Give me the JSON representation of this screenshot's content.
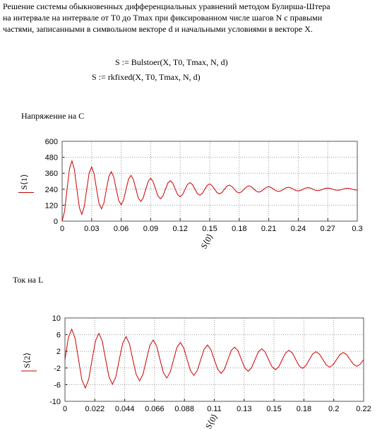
{
  "header": {
    "lines": [
      "Решение системы обыкновенных дифференциальных уравнений  методом Булирша-Штера",
      "на интервале на интервале от T0 до Tmax при фиксированном числе шагов N с правыми",
      "частями, записанными в символьном векторе  d и начальными условиями в векторе X."
    ],
    "formulas": [
      "S := Bulstoer(X, T0, Tmax, N, d)",
      "S := rkfixed(X, T0, Tmax, N, d)"
    ]
  },
  "chart_data": [
    {
      "type": "line",
      "title": "Напряжение на C",
      "y_label": "S⟨1⟩",
      "x_label": "S⟨0⟩",
      "color": "#cc0000",
      "grid": true,
      "xlim": [
        0,
        0.3
      ],
      "ylim": [
        0,
        600
      ],
      "xticks": [
        0,
        0.03,
        0.06,
        0.09,
        0.12,
        0.15,
        0.18,
        0.21,
        0.24,
        0.27,
        0.3
      ],
      "yticks": [
        0,
        120,
        240,
        360,
        480,
        600
      ],
      "x": [
        0,
        0.0025,
        0.005,
        0.0075,
        0.01,
        0.0125,
        0.015,
        0.0175,
        0.02,
        0.0225,
        0.025,
        0.0275,
        0.03,
        0.0325,
        0.035,
        0.0375,
        0.04,
        0.0425,
        0.045,
        0.0475,
        0.05,
        0.0525,
        0.055,
        0.0575,
        0.06,
        0.0625,
        0.065,
        0.0675,
        0.07,
        0.0725,
        0.075,
        0.0775,
        0.08,
        0.0825,
        0.085,
        0.0875,
        0.09,
        0.0925,
        0.095,
        0.0975,
        0.1,
        0.1025,
        0.105,
        0.1075,
        0.11,
        0.1125,
        0.115,
        0.1175,
        0.12,
        0.1225,
        0.125,
        0.1275,
        0.13,
        0.1325,
        0.135,
        0.1375,
        0.14,
        0.1425,
        0.145,
        0.1475,
        0.15,
        0.1525,
        0.155,
        0.1575,
        0.16,
        0.1625,
        0.165,
        0.1675,
        0.17,
        0.1725,
        0.175,
        0.1775,
        0.18,
        0.1825,
        0.185,
        0.1875,
        0.19,
        0.1925,
        0.195,
        0.1975,
        0.2,
        0.2025,
        0.205,
        0.2075,
        0.21,
        0.2125,
        0.215,
        0.2175,
        0.22,
        0.2225,
        0.225,
        0.2275,
        0.23,
        0.2325,
        0.235,
        0.2375,
        0.24,
        0.2425,
        0.245,
        0.2475,
        0.25,
        0.2525,
        0.255,
        0.2575,
        0.26,
        0.2625,
        0.265,
        0.2675,
        0.27,
        0.2725,
        0.275,
        0.2775,
        0.28,
        0.2825,
        0.285,
        0.2875,
        0.29,
        0.2925,
        0.295,
        0.2975,
        0.3
      ],
      "values": [
        0,
        75,
        240,
        395,
        453,
        386,
        240,
        102,
        51,
        110,
        240,
        362,
        408,
        355,
        240,
        132,
        92,
        138,
        240,
        336,
        372,
        330,
        240,
        155,
        123,
        160,
        240,
        316,
        344,
        311,
        240,
        173,
        148,
        177,
        240,
        299,
        322,
        296,
        240,
        187,
        168,
        190,
        240,
        287,
        304,
        284,
        240,
        199,
        183,
        201,
        240,
        277,
        290,
        275,
        240,
        207,
        195,
        209,
        240,
        269,
        280,
        267,
        240,
        214,
        205,
        216,
        240,
        263,
        271,
        261,
        240,
        220,
        212,
        221,
        240,
        258,
        265,
        257,
        240,
        224,
        218,
        225,
        240,
        254,
        259,
        253,
        240,
        228,
        223,
        228,
        240,
        251,
        255,
        250,
        240,
        230,
        227,
        231,
        240,
        249,
        252,
        248,
        240,
        232,
        229,
        233,
        240,
        247,
        249,
        246,
        240,
        234,
        232,
        234,
        240,
        245,
        247,
        245,
        240,
        235,
        233
      ]
    },
    {
      "type": "line",
      "title": "Ток на L",
      "y_label": "S⟨2⟩",
      "x_label": "S⟨0⟩",
      "color": "#cc0000",
      "grid": true,
      "xlim": [
        0,
        0.22
      ],
      "ylim": [
        -10,
        10
      ],
      "xticks": [
        0,
        0.022,
        0.044,
        0.066,
        0.088,
        0.11,
        {
          "value": 0.132,
          "label": "0.13"
        },
        {
          "value": 0.154,
          "label": "0.15"
        },
        {
          "value": 0.176,
          "label": "0.18"
        },
        {
          "value": 0.198,
          "label": "0.2"
        },
        0.22
      ],
      "yticks": [
        -10,
        -6,
        -2,
        2,
        6,
        10
      ],
      "x": [
        0,
        0.0025,
        0.005,
        0.0075,
        0.01,
        0.0125,
        0.015,
        0.0175,
        0.02,
        0.0225,
        0.025,
        0.0275,
        0.03,
        0.0325,
        0.035,
        0.0375,
        0.04,
        0.0425,
        0.045,
        0.0475,
        0.05,
        0.0525,
        0.055,
        0.0575,
        0.06,
        0.0625,
        0.065,
        0.0675,
        0.07,
        0.0725,
        0.075,
        0.0775,
        0.08,
        0.0825,
        0.085,
        0.0875,
        0.09,
        0.0925,
        0.095,
        0.0975,
        0.1,
        0.1025,
        0.105,
        0.1075,
        0.11,
        0.1125,
        0.115,
        0.1175,
        0.12,
        0.1225,
        0.125,
        0.1275,
        0.13,
        0.1325,
        0.135,
        0.1375,
        0.14,
        0.1425,
        0.145,
        0.1475,
        0.15,
        0.1525,
        0.155,
        0.1575,
        0.16,
        0.1625,
        0.165,
        0.1675,
        0.17,
        0.1725,
        0.175,
        0.1775,
        0.18,
        0.1825,
        0.185,
        0.1875,
        0.19,
        0.1925,
        0.195,
        0.1975,
        0.2,
        0.2025,
        0.205,
        0.2075,
        0.21,
        0.2125,
        0.215,
        0.2175,
        0.22
      ],
      "values": [
        0,
        5.3,
        7.3,
        5.1,
        0,
        -4.9,
        -6.8,
        -4.7,
        0,
        4.5,
        6.3,
        4.4,
        0,
        -4.2,
        -5.9,
        -4.1,
        0,
        3.9,
        5.5,
        3.8,
        0,
        -3.6,
        -5.1,
        -3.5,
        0,
        3.4,
        4.7,
        3.3,
        0,
        -3.1,
        -4.4,
        -3.0,
        0,
        2.9,
        4.1,
        2.8,
        0,
        -2.7,
        -3.8,
        -2.6,
        0,
        2.5,
        3.5,
        2.4,
        0,
        -2.3,
        -3.3,
        -2.3,
        0,
        2.2,
        3.0,
        2.1,
        0,
        -2.0,
        -2.8,
        -1.9,
        0,
        1.9,
        2.6,
        1.8,
        0,
        -1.7,
        -2.4,
        -1.7,
        0,
        1.6,
        2.2,
        1.6,
        0,
        -1.5,
        -2.1,
        -1.4,
        0,
        1.4,
        1.9,
        1.3,
        0,
        -1.3,
        -1.8,
        -1.2,
        0,
        1.2,
        1.7,
        1.2,
        0,
        -1.1,
        -1.6,
        -1.1,
        0
      ]
    }
  ]
}
